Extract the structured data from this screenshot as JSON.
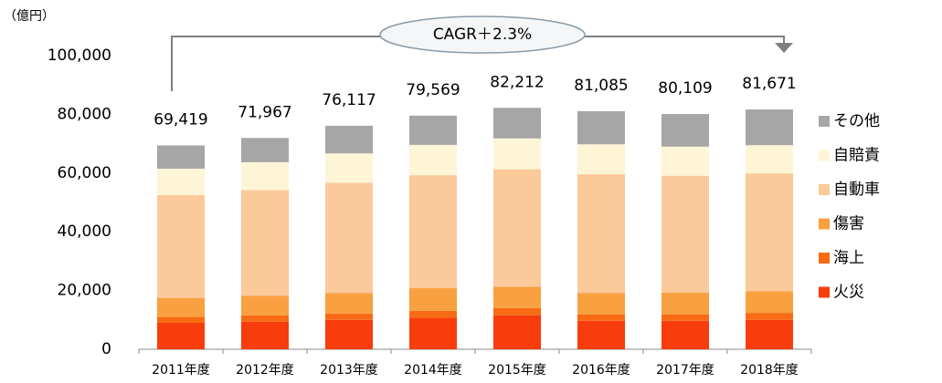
{
  "chart_data": {
    "type": "stacked_bar",
    "unit_label": "（億円）",
    "annotation": "CAGR＋2.3%",
    "categories": [
      "2011年度",
      "2012年度",
      "2013年度",
      "2014年度",
      "2015年度",
      "2016年度",
      "2017年度",
      "2018年度"
    ],
    "series": [
      {
        "name": "火災",
        "color": "#f83c0b",
        "values": [
          9000,
          9400,
          10000,
          10800,
          11600,
          9700,
          9700,
          10000
        ]
      },
      {
        "name": "海上",
        "color": "#f86b14",
        "values": [
          2000,
          2100,
          2200,
          2300,
          2400,
          2200,
          2200,
          2400
        ]
      },
      {
        "name": "傷害",
        "color": "#f9a040",
        "values": [
          6500,
          6700,
          7000,
          7700,
          7300,
          7300,
          7400,
          7400
        ]
      },
      {
        "name": "自動車",
        "color": "#fbc99a",
        "values": [
          35000,
          36000,
          37500,
          38500,
          40000,
          40400,
          39800,
          40100
        ]
      },
      {
        "name": "自賠責",
        "color": "#fef5d7",
        "values": [
          9000,
          9500,
          10000,
          10300,
          10500,
          10200,
          9900,
          9600
        ]
      },
      {
        "name": "その他",
        "color": "#a6a6a6",
        "values": [
          7919,
          8267,
          9417,
          9969,
          10412,
          11285,
          11109,
          12171
        ]
      }
    ],
    "totals": {
      "values": [
        69419,
        71967,
        76117,
        79569,
        82212,
        81085,
        80109,
        81671
      ],
      "value_labels": [
        "69,419",
        "71,967",
        "76,117",
        "79,569",
        "82,212",
        "81,085",
        "80,109",
        "81,671"
      ]
    },
    "ylim": [
      0,
      100000
    ],
    "yticks": [
      0,
      {
        "value": 20000,
        "label": "20,000"
      },
      {
        "value": 40000,
        "label": "40,000"
      },
      {
        "value": 60000,
        "label": "60,000"
      },
      {
        "value": 80000,
        "label": "80,000"
      },
      {
        "value": 100000,
        "label": "100,000"
      }
    ],
    "grid": false,
    "legend": "right"
  }
}
